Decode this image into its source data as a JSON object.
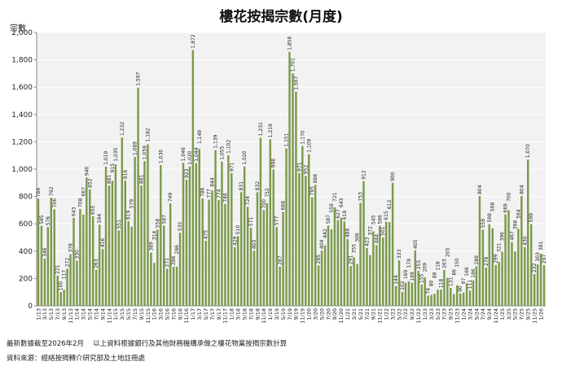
{
  "chart_data": {
    "type": "bar",
    "title": "樓花按揭宗數(月度)",
    "ylabel": "宗數",
    "xlabel": "",
    "ylim": [
      0,
      2000
    ],
    "yticks": [
      "0",
      "200",
      "400",
      "600",
      "800",
      "1,000",
      "1,200",
      "1,400",
      "1,600",
      "1,800",
      "2,000"
    ],
    "grid": true,
    "color": "#7b9a4c",
    "start": {
      "year": 2013,
      "month": 1
    },
    "values": [
      784,
      585,
      346,
      576,
      792,
      706,
      221,
      100,
      117,
      272,
      378,
      643,
      330,
      708,
      667,
      940,
      852,
      655,
      263,
      594,
      416,
      1019,
      881,
      915,
      1035,
      551,
      1232,
      916,
      619,
      579,
      1089,
      1597,
      881,
      1059,
      1182,
      389,
      314,
      558,
      1030,
      587,
      271,
      749,
      286,
      286,
      535,
      1046,
      923,
      1020,
      1872,
      1044,
      1149,
      786,
      475,
      777,
      844,
      1139,
      774,
      1055,
      746,
      1102,
      971,
      429,
      510,
      831,
      1020,
      724,
      571,
      403,
      832,
      1231,
      700,
      752,
      1219,
      998,
      577,
      287,
      688,
      1151,
      1858,
      1701,
      1567,
      971,
      1170,
      952,
      1109,
      795,
      886,
      295,
      404,
      442,
      587,
      559,
      721,
      627,
      643,
      618,
      488,
      291,
      355,
      306,
      753,
      912,
      423,
      372,
      545,
      444,
      586,
      501,
      615,
      612,
      900,
      144,
      333,
      102,
      169,
      179,
      169,
      405,
      255,
      155,
      209,
      74,
      80,
      88,
      118,
      118,
      263,
      205,
      131,
      86,
      150,
      90,
      97,
      166,
      111,
      186,
      289,
      804,
      558,
      279,
      598,
      568,
      299,
      321,
      396,
      669,
      700,
      467,
      398,
      564,
      804,
      430,
      1070,
      599,
      232,
      303,
      381,
      297
    ]
  },
  "notes": {
    "line1": "最新數據截至2026年2月　 以上資料根據銀行及其他財務機構承做之樓花物業按揭宗數計算",
    "line2": "資料來源：經絡按揭轉介研究部及土地註冊處"
  }
}
